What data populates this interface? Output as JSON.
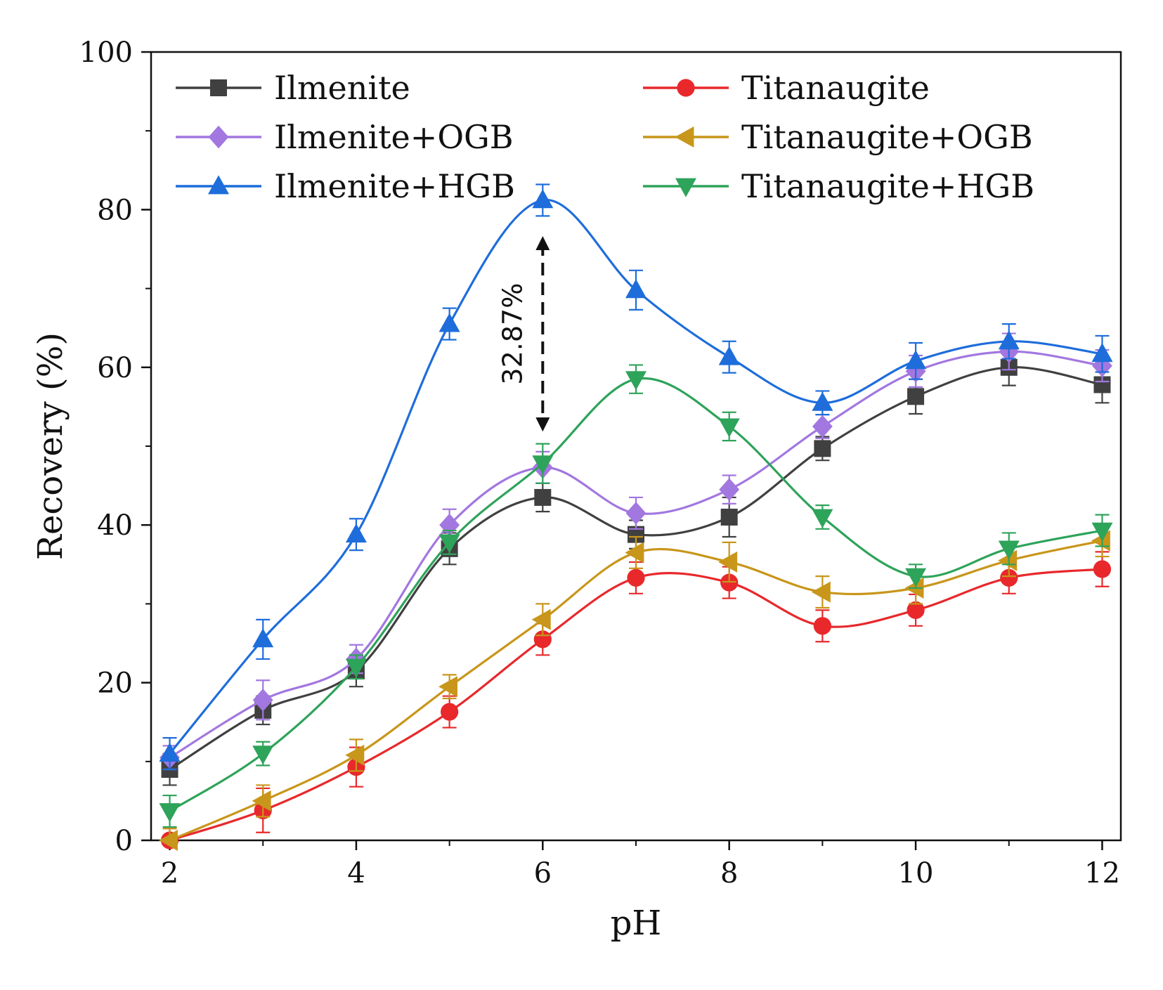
{
  "chart_data": {
    "type": "line",
    "title": "",
    "xlabel": "pH",
    "ylabel": "Recovery (%)",
    "xlim": [
      1.8,
      12.2
    ],
    "ylim": [
      0,
      100
    ],
    "xticks": [
      2,
      4,
      6,
      8,
      10,
      12
    ],
    "yticks": [
      0,
      20,
      40,
      60,
      80,
      100
    ],
    "grid": false,
    "legend_position": "top",
    "x": [
      2,
      3,
      4,
      5,
      6,
      7,
      8,
      9,
      10,
      11,
      12
    ],
    "series": [
      {
        "name": "Ilmenite",
        "color": "#404040",
        "marker": "square",
        "values": [
          9.0,
          16.5,
          21.5,
          37.0,
          43.5,
          38.8,
          41.0,
          49.7,
          56.3,
          60.0,
          57.8
        ],
        "errors": [
          2.0,
          1.8,
          2.0,
          2.0,
          1.8,
          1.8,
          2.5,
          1.5,
          2.2,
          2.3,
          2.3
        ]
      },
      {
        "name": "Titanaugite",
        "color": "#e8282b",
        "marker": "circle",
        "values": [
          0.0,
          3.8,
          9.3,
          16.3,
          25.5,
          33.3,
          32.7,
          27.2,
          29.2,
          33.3,
          34.4
        ],
        "errors": [
          1.5,
          2.8,
          2.5,
          2.0,
          2.0,
          2.0,
          2.0,
          2.0,
          2.0,
          2.0,
          2.2
        ]
      },
      {
        "name": "Ilmenite+OGB",
        "color": "#a277e0",
        "marker": "diamond",
        "values": [
          10.5,
          17.8,
          23.0,
          40.0,
          47.3,
          41.5,
          44.5,
          52.5,
          59.5,
          62.0,
          60.2
        ],
        "errors": [
          1.5,
          2.5,
          1.8,
          2.0,
          2.0,
          2.0,
          1.8,
          1.5,
          2.0,
          2.3,
          2.0
        ]
      },
      {
        "name": "Titanaugite+OGB",
        "color": "#c8961a",
        "marker": "triangle-left",
        "values": [
          0.0,
          5.0,
          10.8,
          19.5,
          28.0,
          36.5,
          35.3,
          31.5,
          32.0,
          35.5,
          38.0
        ],
        "errors": [
          1.5,
          2.0,
          2.0,
          1.5,
          2.0,
          2.0,
          2.5,
          2.0,
          2.0,
          2.0,
          2.0
        ]
      },
      {
        "name": "Ilmenite+HGB",
        "color": "#1e6ddb",
        "marker": "triangle-up",
        "values": [
          11.0,
          25.5,
          38.8,
          65.5,
          81.2,
          69.8,
          61.3,
          55.5,
          60.8,
          63.3,
          61.7
        ],
        "errors": [
          2.0,
          2.5,
          2.0,
          2.0,
          2.0,
          2.5,
          2.0,
          1.5,
          2.3,
          2.2,
          2.3
        ]
      },
      {
        "name": "Titanaugite+HGB",
        "color": "#2ea35a",
        "marker": "triangle-down",
        "values": [
          3.7,
          11.0,
          22.0,
          37.8,
          47.8,
          58.5,
          52.5,
          41.0,
          33.5,
          37.0,
          39.3
        ],
        "errors": [
          2.0,
          1.5,
          1.5,
          1.5,
          2.5,
          1.8,
          1.8,
          1.5,
          1.5,
          2.0,
          2.0
        ]
      }
    ],
    "annotations": [
      {
        "text": "32.87%",
        "x": 6,
        "y_from": 77.0,
        "y_to": 51.5
      }
    ]
  }
}
